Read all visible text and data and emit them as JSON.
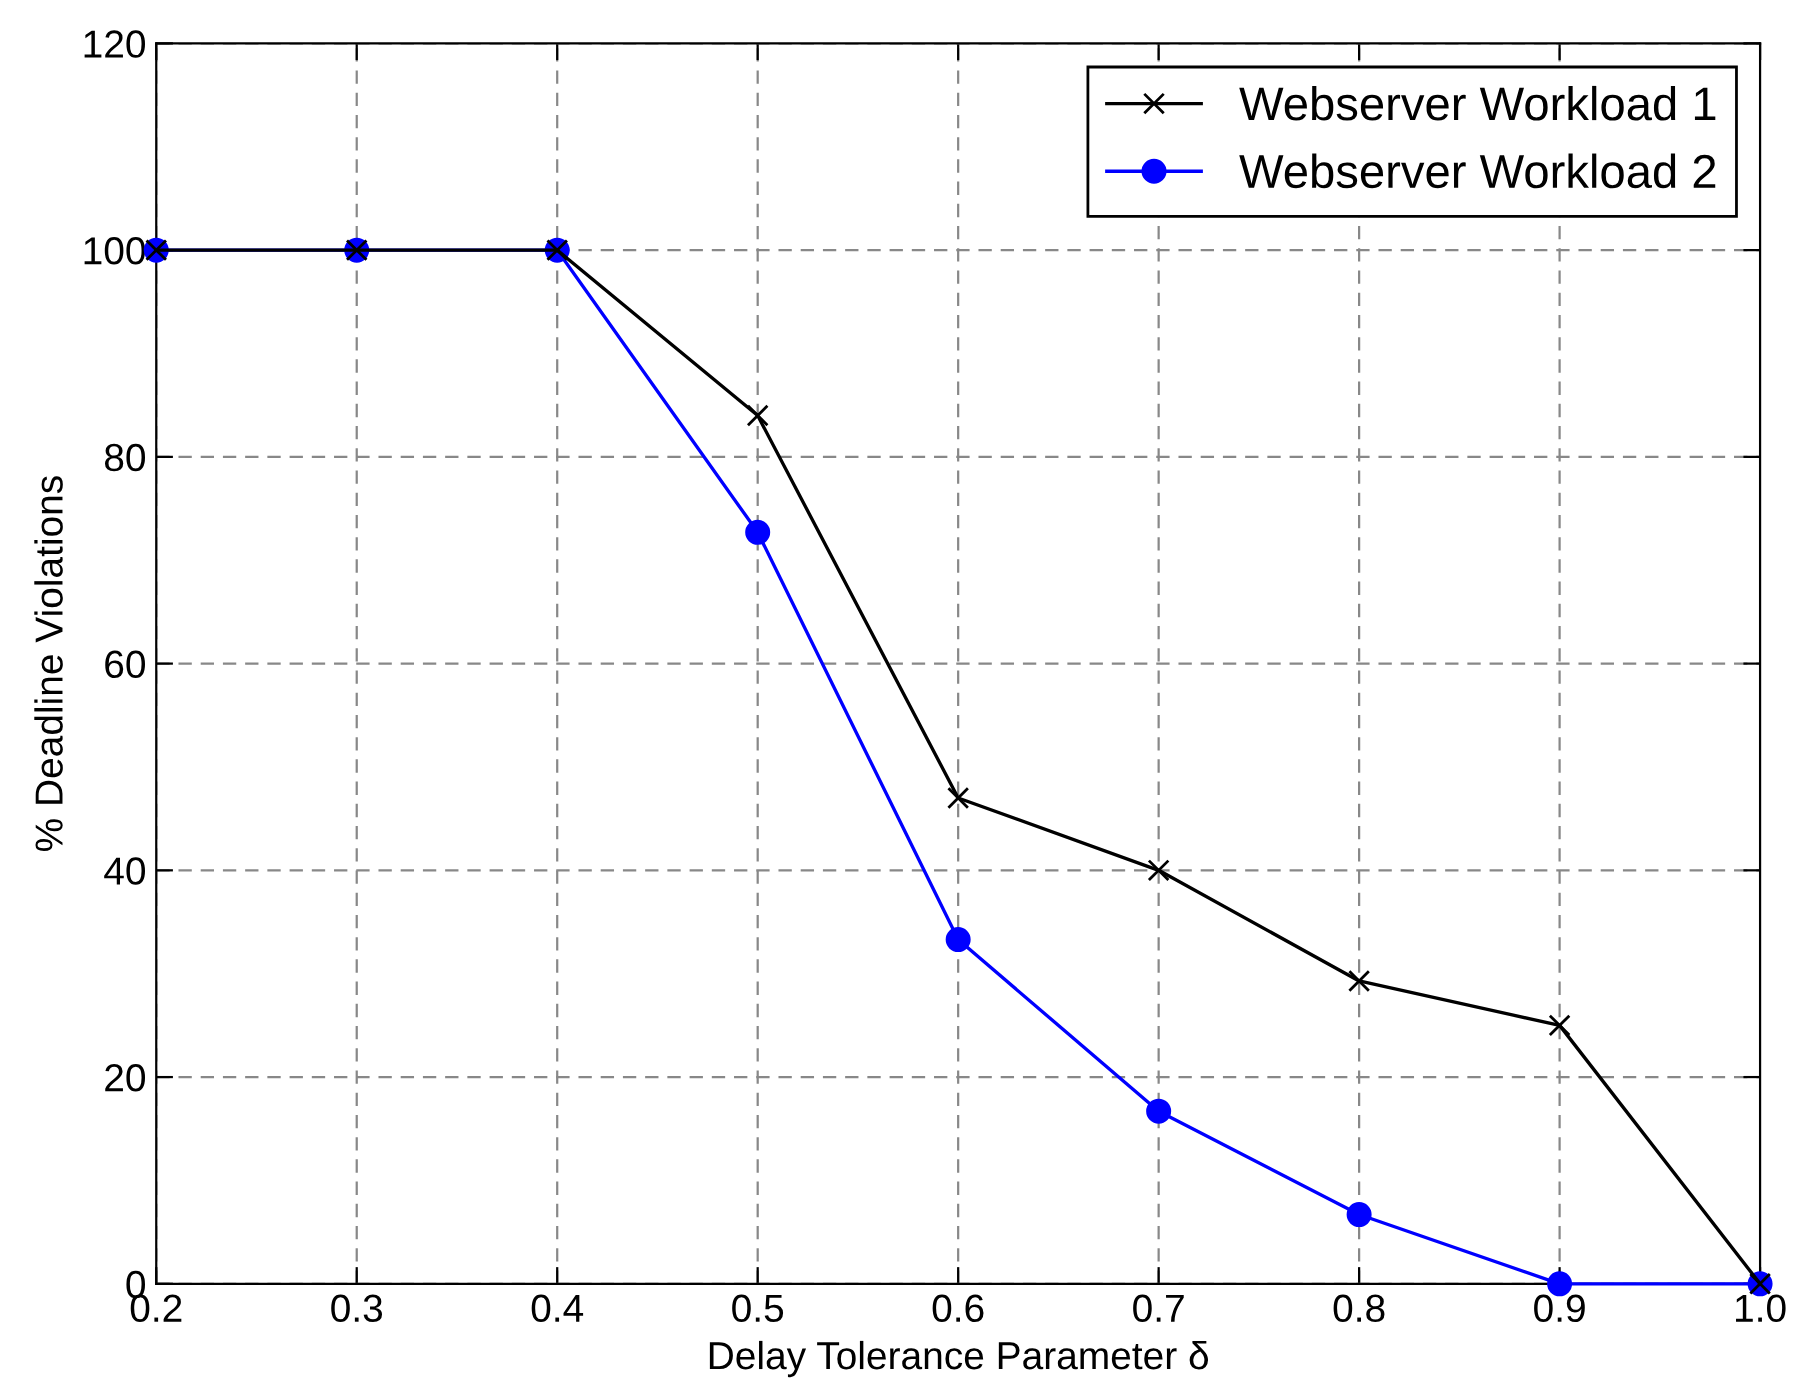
{
  "chart_data": {
    "type": "line",
    "xlabel": "Delay Tolerance Parameter δ",
    "ylabel": "% Deadline Violations",
    "x": [
      0.2,
      0.3,
      0.4,
      0.5,
      0.6,
      0.7,
      0.8,
      0.9,
      1.0
    ],
    "series": [
      {
        "name": "Webserver Workload 1",
        "color": "#000000",
        "marker": "cross",
        "values": [
          100,
          100,
          100,
          84,
          47,
          40,
          29.3,
          25,
          0
        ]
      },
      {
        "name": "Webserver Workload 2",
        "color": "#0000ff",
        "marker": "circle",
        "values": [
          100,
          100,
          100,
          72.7,
          33.3,
          16.7,
          6.7,
          0,
          0
        ]
      }
    ],
    "xlim": [
      0.2,
      1.0
    ],
    "xticks": [
      0.2,
      0.3,
      0.4,
      0.5,
      0.6,
      0.7,
      0.8,
      0.9,
      {
        "value": 1.0,
        "label": "1.0"
      }
    ],
    "ylim": [
      0,
      120
    ],
    "yticks": [
      0,
      20,
      40,
      60,
      80,
      100,
      120
    ],
    "grid": true,
    "legend": "top right",
    "line_style": "solid"
  }
}
